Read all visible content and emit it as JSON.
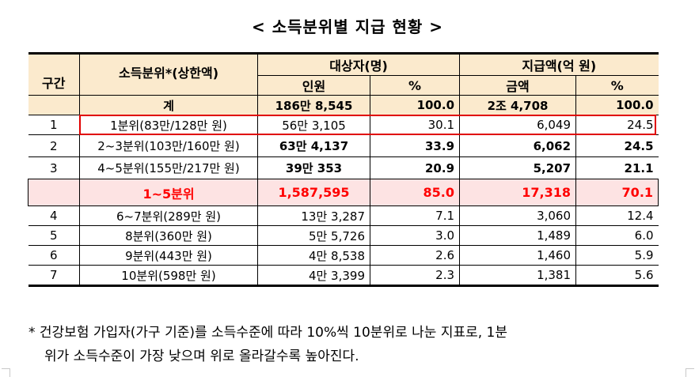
{
  "title": "< 소득분위별 지급 현황 >",
  "table": {
    "headers": {
      "section": "구간",
      "quintile": "소득분위*(상한액)",
      "recipients_group": "대상자(명)",
      "amount_group": "지급액(억 원)",
      "recipients_count": "인원",
      "recipients_pct": "%",
      "amount_value": "금액",
      "amount_pct": "%"
    },
    "total": {
      "label": "계",
      "count": "186만 8,545",
      "count_pct": "100.0",
      "amount": "2조 4,708",
      "amount_pct": "100.0"
    },
    "rows": [
      {
        "section": "1",
        "quintile": "1분위(83만/128만 원)",
        "count": "56만 3,105",
        "count_pct": "30.1",
        "amount": "6,049",
        "amount_pct": "24.5"
      },
      {
        "section": "2",
        "quintile": "2~3분위(103만/160만 원)",
        "count": "63만 4,137",
        "count_pct": "33.9",
        "amount": "6,062",
        "amount_pct": "24.5"
      },
      {
        "section": "3",
        "quintile": "4~5분위(155만/217만 원)",
        "count": "39만 353",
        "count_pct": "20.9",
        "amount": "5,207",
        "amount_pct": "21.1"
      }
    ],
    "subtotal": {
      "section": "",
      "quintile": "1~5분위",
      "count": "1,587,595",
      "count_pct": "85.0",
      "amount": "17,318",
      "amount_pct": "70.1"
    },
    "rows_lower": [
      {
        "section": "4",
        "quintile": "6~7분위(289만 원)",
        "count": "13만 3,287",
        "count_pct": "7.1",
        "amount": "3,060",
        "amount_pct": "12.4"
      },
      {
        "section": "5",
        "quintile": "8분위(360만 원)",
        "count": "5만 5,726",
        "count_pct": "3.0",
        "amount": "1,489",
        "amount_pct": "6.0"
      },
      {
        "section": "6",
        "quintile": "9분위(443만 원)",
        "count": "4만 8,538",
        "count_pct": "2.6",
        "amount": "1,460",
        "amount_pct": "5.9"
      },
      {
        "section": "7",
        "quintile": "10분위(598만 원)",
        "count": "4만 3,399",
        "count_pct": "2.3",
        "amount": "1,381",
        "amount_pct": "5.6"
      }
    ]
  },
  "footnote": {
    "line1": "* 건강보험 가입자(가구 기준)를 소득수준에 따라 10%씩 10분위로 나눈 지표로, 1분",
    "line2": "위가 소득수준이 가장 낮으며 위로 올라갈수록 높아진다."
  },
  "colors": {
    "header_bg": "#fbeacd",
    "subtotal_bg": "#fde3e3",
    "highlight": "#ff0000",
    "row_outline": "#e00000"
  }
}
